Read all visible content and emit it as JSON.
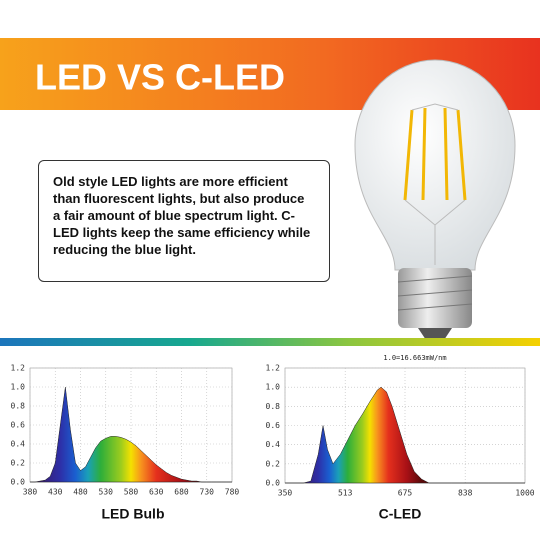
{
  "header": {
    "title": "LED VS C-LED"
  },
  "description": "Old style LED lights are more efficient than fluorescent lights, but also produce a fair amount of blue spectrum light. C-LED lights keep the same efficiency while reducing the blue light.",
  "chart_data": [
    {
      "type": "area",
      "title": "LED Bulb",
      "x": [
        380,
        390,
        400,
        410,
        420,
        430,
        440,
        450,
        460,
        470,
        480,
        490,
        500,
        510,
        520,
        530,
        540,
        550,
        560,
        570,
        580,
        590,
        600,
        610,
        620,
        630,
        640,
        650,
        660,
        670,
        680,
        690,
        700,
        710,
        720,
        730,
        740,
        750,
        760,
        770,
        780
      ],
      "values": [
        0,
        0,
        0.01,
        0.02,
        0.06,
        0.2,
        0.6,
        1.0,
        0.55,
        0.2,
        0.12,
        0.16,
        0.26,
        0.36,
        0.43,
        0.46,
        0.48,
        0.48,
        0.47,
        0.45,
        0.42,
        0.38,
        0.33,
        0.28,
        0.23,
        0.18,
        0.14,
        0.1,
        0.07,
        0.05,
        0.03,
        0.02,
        0.01,
        0.01,
        0,
        0,
        0,
        0,
        0,
        0,
        0
      ],
      "xlim": [
        380,
        780
      ],
      "xticks": [
        380,
        430,
        480,
        530,
        580,
        630,
        680,
        730,
        780
      ],
      "ylim": [
        0,
        1.2
      ],
      "yticks": [
        {
          "value": 0,
          "label": "0.0"
        },
        {
          "value": 0.2,
          "label": "0.2"
        },
        {
          "value": 0.4,
          "label": "0.4"
        },
        {
          "value": 0.6,
          "label": "0.6"
        },
        {
          "value": 0.8,
          "label": "0.8"
        },
        {
          "value": 1,
          "label": "1.0"
        },
        {
          "value": 1.2,
          "label": "1.2"
        }
      ],
      "grid": true
    },
    {
      "type": "area",
      "title": "C-LED",
      "annotation": "1.0=16.663mW/nm",
      "x": [
        350,
        400,
        420,
        440,
        453,
        465,
        480,
        500,
        520,
        540,
        560,
        580,
        600,
        610,
        625,
        640,
        660,
        680,
        700,
        720,
        740,
        800,
        900,
        1000
      ],
      "values": [
        0,
        0,
        0.02,
        0.3,
        0.6,
        0.35,
        0.2,
        0.3,
        0.45,
        0.6,
        0.72,
        0.85,
        0.97,
        1.0,
        0.95,
        0.8,
        0.55,
        0.3,
        0.12,
        0.04,
        0,
        0,
        0,
        0
      ],
      "xlim": [
        350,
        1000
      ],
      "xticks": [
        350,
        513,
        675,
        838,
        1000
      ],
      "ylim": [
        0,
        1.2
      ],
      "yticks": [
        {
          "value": 0,
          "label": "0.0"
        },
        {
          "value": 0.2,
          "label": "0.2"
        },
        {
          "value": 0.4,
          "label": "0.4"
        },
        {
          "value": 0.6,
          "label": "0.6"
        },
        {
          "value": 0.8,
          "label": "0.8"
        },
        {
          "value": 1,
          "label": "1.0"
        },
        {
          "value": 1.2,
          "label": "1.2"
        }
      ],
      "grid": true
    }
  ]
}
